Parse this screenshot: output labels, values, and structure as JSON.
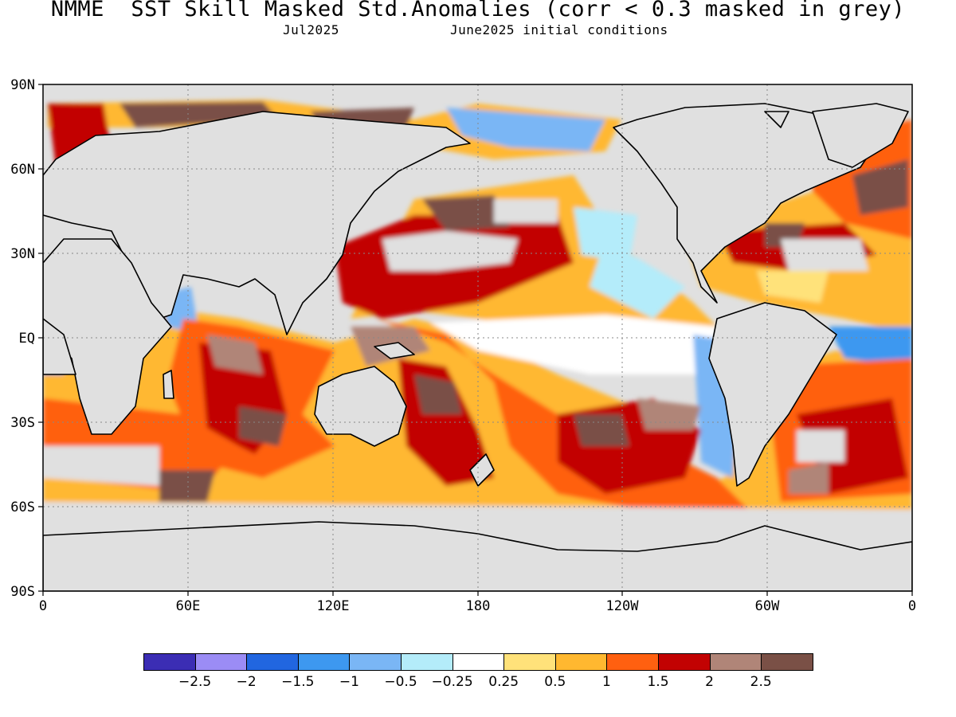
{
  "title": "NMME  SST Skill Masked Std.Anomalies (corr < 0.3 masked in grey)",
  "subtitle_left": "Jul2025",
  "subtitle_right": "June2025 initial conditions",
  "lat_labels": [
    "90N",
    "60N",
    "30N",
    "EQ",
    "30S",
    "60S",
    "90S"
  ],
  "lon_labels": [
    "0",
    "60E",
    "120E",
    "180",
    "120W",
    "60W",
    "0"
  ],
  "colorbar": {
    "colors": [
      "#3b2db4",
      "#9b8cf5",
      "#2166e0",
      "#3d98f0",
      "#7ab6f5",
      "#b4ecfa",
      "#ffffff",
      "#ffe27a",
      "#ffb830",
      "#ff6010",
      "#c20202",
      "#b08578",
      "#7a5046"
    ],
    "labels": [
      "-2.5",
      "-2",
      "-1.5",
      "-1",
      "-0.5",
      "-0.25",
      "0.25",
      "0.5",
      "1",
      "1.5",
      "2",
      "2.5"
    ]
  },
  "mask_color": "#e0e0e0"
}
